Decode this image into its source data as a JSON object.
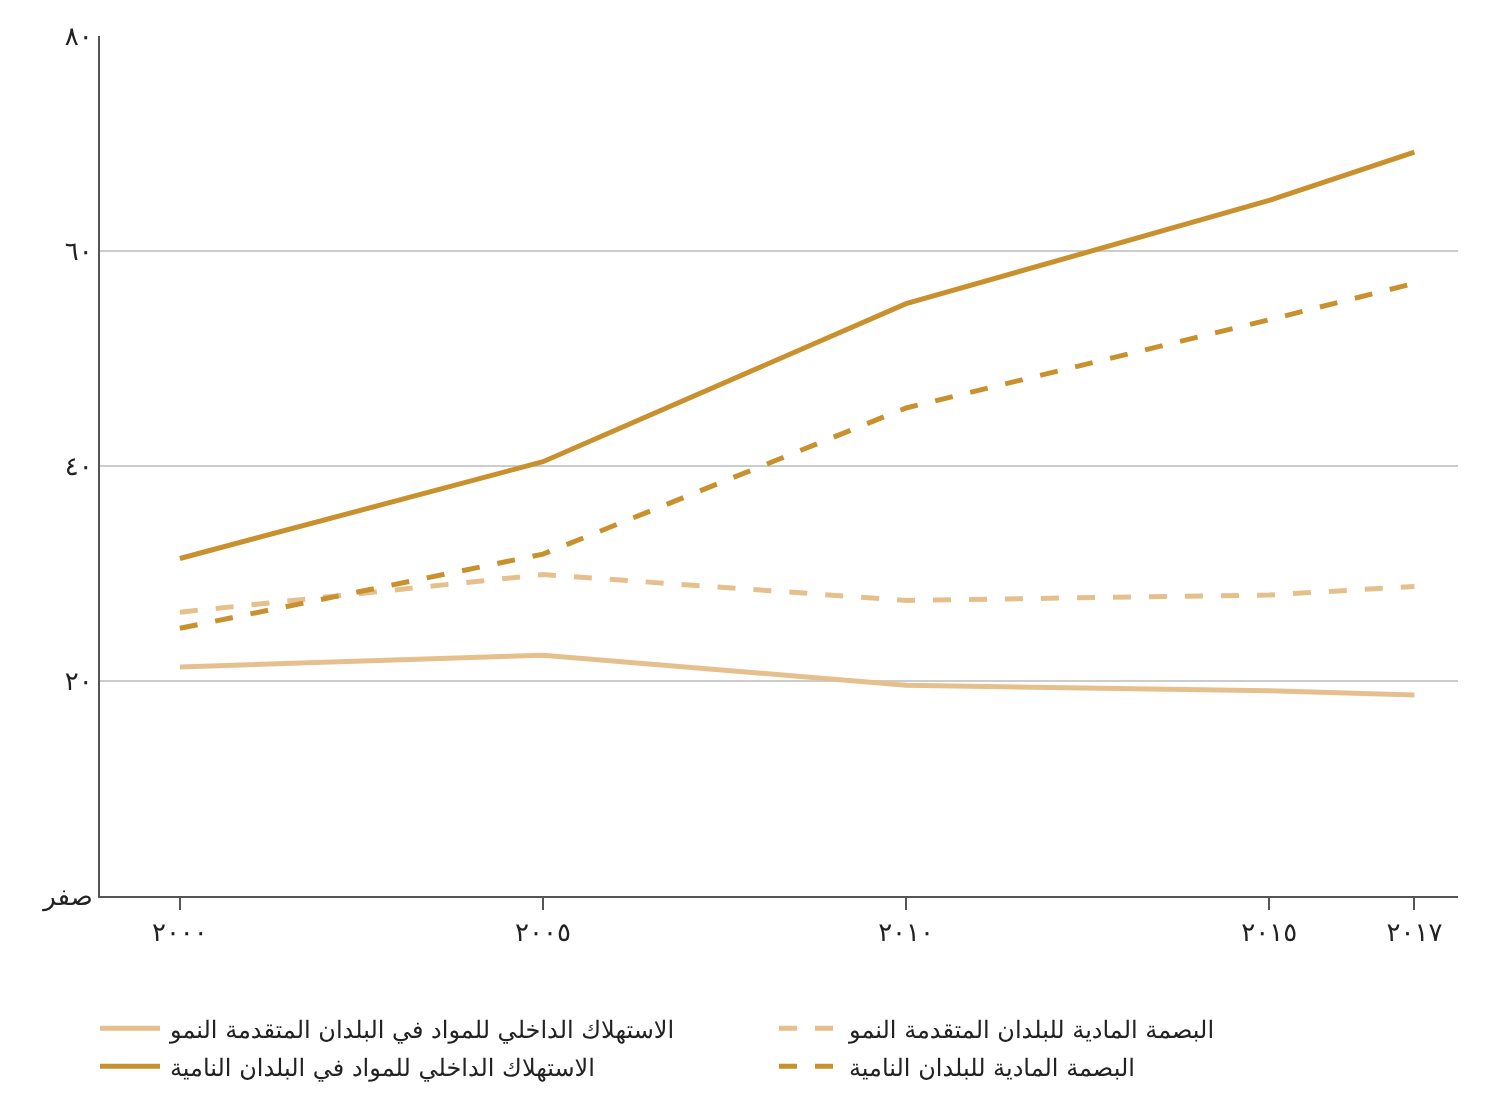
{
  "chart_data": {
    "type": "line",
    "x": [
      2000,
      2005,
      2010,
      2015,
      2017
    ],
    "series": [
      {
        "name": "الاستهلاك الداخلي للمواد في البلدان المتقدمة النمو",
        "color": "#e6c08c",
        "line_style": "solid",
        "values": [
          21.3,
          22.4,
          19.6,
          19.1,
          18.7
        ]
      },
      {
        "name": "البصمة المادية للبلدان المتقدمة النمو",
        "color": "#e6c08c",
        "line_style": "dashed",
        "values": [
          26.4,
          29.9,
          27.5,
          28.0,
          28.8
        ]
      },
      {
        "name": "الاستهلاك الداخلي للمواد في البلدان النامية",
        "color": "#c9902e",
        "line_style": "solid",
        "values": [
          31.4,
          40.4,
          55.1,
          64.7,
          69.2
        ]
      },
      {
        "name": "البصمة المادية للبلدان النامية",
        "color": "#c9902e",
        "line_style": "dashed",
        "values": [
          24.9,
          31.8,
          45.4,
          53.6,
          57.0
        ]
      }
    ],
    "xlim": [
      1998.9,
      2017.6
    ],
    "xticks": [
      {
        "value": 2000,
        "label": "٢٠٠٠"
      },
      {
        "value": 2005,
        "label": "٢٠٠٥"
      },
      {
        "value": 2010,
        "label": "٢٠١٠"
      },
      {
        "value": 2015,
        "label": "٢٠١٥"
      },
      {
        "value": 2017,
        "label": "٢٠١٧"
      }
    ],
    "ylim": [
      0,
      80
    ],
    "yticks": [
      {
        "value": 0,
        "label": "صفر"
      },
      {
        "value": 20,
        "label": "٢٠"
      },
      {
        "value": 40,
        "label": "٤٠"
      },
      {
        "value": 60,
        "label": "٦٠"
      },
      {
        "value": 80,
        "label": "٨٠"
      }
    ],
    "grid": "y",
    "legend": "bottom",
    "marker": "none"
  }
}
